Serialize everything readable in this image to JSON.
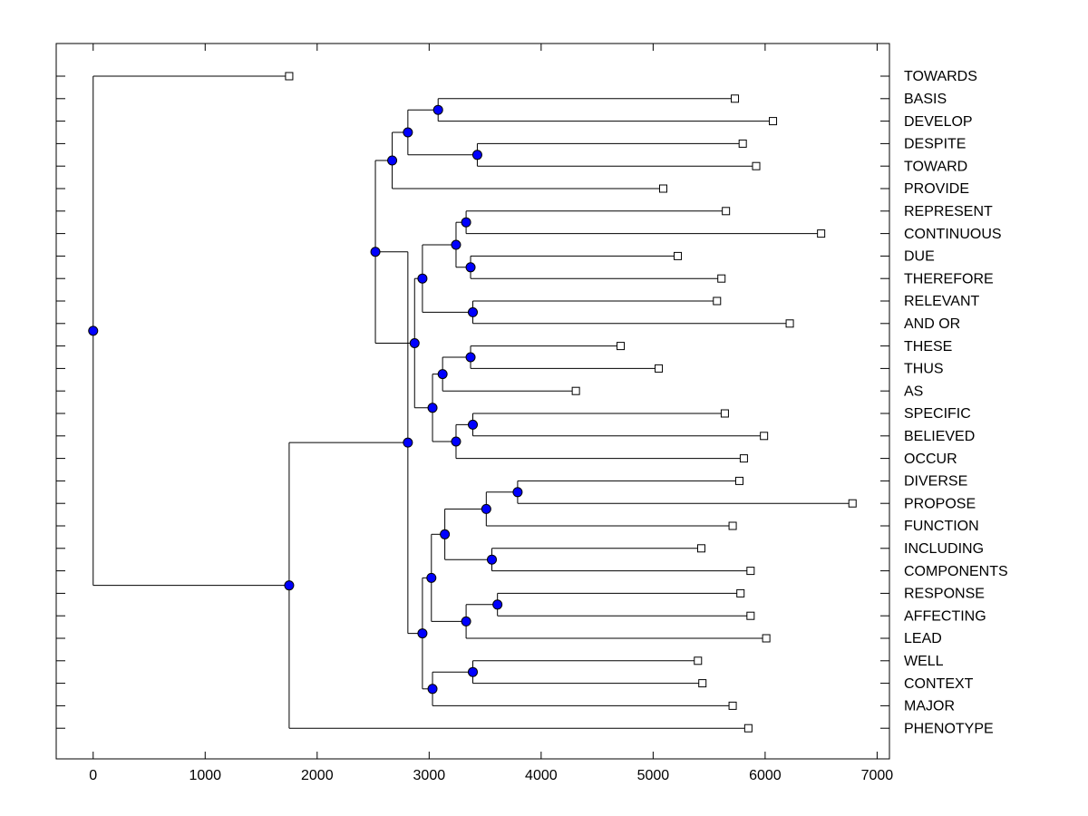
{
  "chart_data": {
    "type": "dendrogram",
    "title": "",
    "xlabel": "",
    "ylabel": "",
    "xlim": [
      -330,
      7110
    ],
    "xticks": [
      0,
      1000,
      2000,
      3000,
      4000,
      5000,
      6000,
      7000
    ],
    "colors": {
      "node": "#0000ff",
      "leaf": "#ffffff",
      "line": "#000000"
    },
    "leaves": [
      {
        "label": "TOWARDS",
        "x": 1750
      },
      {
        "label": "BASIS",
        "x": 5730
      },
      {
        "label": "DEVELOP",
        "x": 6070
      },
      {
        "label": "DESPITE",
        "x": 5800
      },
      {
        "label": "TOWARD",
        "x": 5920
      },
      {
        "label": "PROVIDE",
        "x": 5090
      },
      {
        "label": "REPRESENT",
        "x": 5650
      },
      {
        "label": "CONTINUOUS",
        "x": 6500
      },
      {
        "label": "DUE",
        "x": 5220
      },
      {
        "label": "THEREFORE",
        "x": 5610
      },
      {
        "label": "RELEVANT",
        "x": 5570
      },
      {
        "label": "AND OR",
        "x": 6220
      },
      {
        "label": "THESE",
        "x": 4710
      },
      {
        "label": "THUS",
        "x": 5050
      },
      {
        "label": "AS",
        "x": 4310
      },
      {
        "label": "SPECIFIC",
        "x": 5640
      },
      {
        "label": "BELIEVED",
        "x": 5990
      },
      {
        "label": "OCCUR",
        "x": 5810
      },
      {
        "label": "DIVERSE",
        "x": 5770
      },
      {
        "label": "PROPOSE",
        "x": 6780
      },
      {
        "label": "FUNCTION",
        "x": 5710
      },
      {
        "label": "INCLUDING",
        "x": 5430
      },
      {
        "label": "COMPONENTS",
        "x": 5870
      },
      {
        "label": "RESPONSE",
        "x": 5780
      },
      {
        "label": "AFFECTING",
        "x": 5870
      },
      {
        "label": "LEAD",
        "x": 6010
      },
      {
        "label": "WELL",
        "x": 5400
      },
      {
        "label": "CONTEXT",
        "x": 5440
      },
      {
        "label": "MAJOR",
        "x": 5710
      },
      {
        "label": "PHENOTYPE",
        "x": 5850
      }
    ],
    "merges": [
      {
        "id": "m1",
        "x": 3080,
        "children": [
          "BASIS",
          "DEVELOP"
        ]
      },
      {
        "id": "m2",
        "x": 3430,
        "children": [
          "DESPITE",
          "TOWARD"
        ]
      },
      {
        "id": "m3",
        "x": 2810,
        "children": [
          "m1",
          "m2"
        ]
      },
      {
        "id": "m4",
        "x": 2670,
        "children": [
          "m3",
          "PROVIDE"
        ]
      },
      {
        "id": "m5",
        "x": 3330,
        "children": [
          "REPRESENT",
          "CONTINUOUS"
        ]
      },
      {
        "id": "m6",
        "x": 3370,
        "children": [
          "DUE",
          "THEREFORE"
        ]
      },
      {
        "id": "m7",
        "x": 3240,
        "children": [
          "m5",
          "m6"
        ]
      },
      {
        "id": "m8",
        "x": 3390,
        "children": [
          "RELEVANT",
          "AND OR"
        ]
      },
      {
        "id": "m9",
        "x": 2940,
        "children": [
          "m7",
          "m8"
        ]
      },
      {
        "id": "m10",
        "x": 3370,
        "children": [
          "THESE",
          "THUS"
        ]
      },
      {
        "id": "m11",
        "x": 3120,
        "children": [
          "m10",
          "AS"
        ]
      },
      {
        "id": "m12",
        "x": 3390,
        "children": [
          "SPECIFIC",
          "BELIEVED"
        ]
      },
      {
        "id": "m13",
        "x": 3240,
        "children": [
          "m12",
          "OCCUR"
        ]
      },
      {
        "id": "m14",
        "x": 3030,
        "children": [
          "m11",
          "m13"
        ]
      },
      {
        "id": "m15",
        "x": 2870,
        "children": [
          "m9",
          "m14"
        ]
      },
      {
        "id": "m16",
        "x": 2520,
        "children": [
          "m4",
          "m15"
        ]
      },
      {
        "id": "m17",
        "x": 3790,
        "children": [
          "DIVERSE",
          "PROPOSE"
        ]
      },
      {
        "id": "m18",
        "x": 3510,
        "children": [
          "m17",
          "FUNCTION"
        ]
      },
      {
        "id": "m19",
        "x": 3560,
        "children": [
          "INCLUDING",
          "COMPONENTS"
        ]
      },
      {
        "id": "m20",
        "x": 3140,
        "children": [
          "m18",
          "m19"
        ]
      },
      {
        "id": "m21",
        "x": 3610,
        "children": [
          "RESPONSE",
          "AFFECTING"
        ]
      },
      {
        "id": "m22",
        "x": 3330,
        "children": [
          "m21",
          "LEAD"
        ]
      },
      {
        "id": "m23",
        "x": 3020,
        "children": [
          "m20",
          "m22"
        ]
      },
      {
        "id": "m24",
        "x": 3390,
        "children": [
          "WELL",
          "CONTEXT"
        ]
      },
      {
        "id": "m25",
        "x": 3030,
        "children": [
          "m24",
          "MAJOR"
        ]
      },
      {
        "id": "m26",
        "x": 2940,
        "children": [
          "m23",
          "m25"
        ]
      },
      {
        "id": "m27",
        "x": 2810,
        "children": [
          "m16",
          "m26"
        ]
      },
      {
        "id": "m28",
        "x": 1750,
        "children": [
          "m27",
          "PHENOTYPE"
        ]
      },
      {
        "id": "m29",
        "x": 0,
        "children": [
          "TOWARDS",
          "m28"
        ]
      }
    ]
  }
}
